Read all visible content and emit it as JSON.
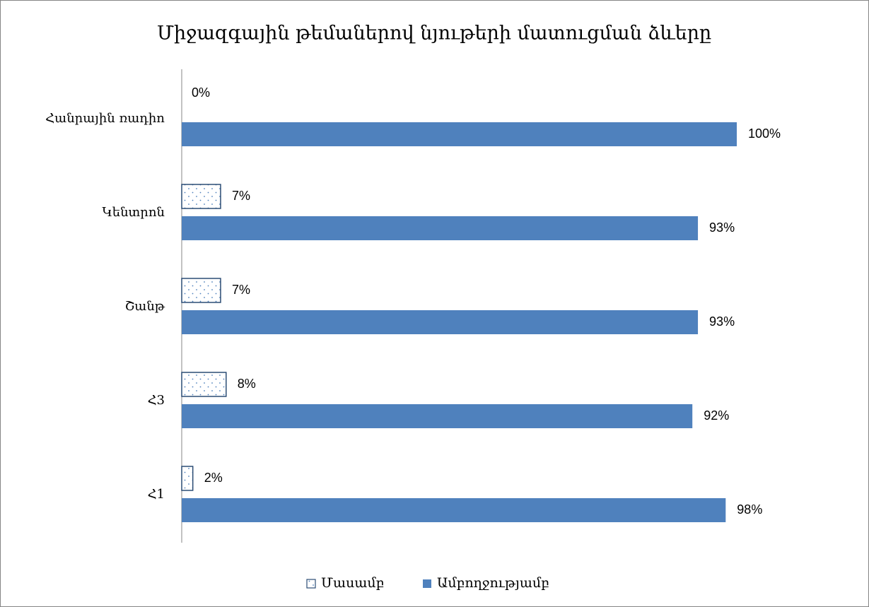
{
  "chart_data": {
    "type": "hbar",
    "title": "Միջազգային թեմաներով նյութերի մատուցման ձևերը",
    "categories": [
      "Հանրային ռադիո",
      "Կենտրոն",
      "Շանթ",
      "Հ3",
      "Հ1"
    ],
    "series": [
      {
        "name": "Մասամբ",
        "color": "#2c4d75",
        "pattern": "dotted",
        "values": [
          0,
          7,
          7,
          8,
          2
        ],
        "value_labels": [
          "0%",
          "7%",
          "7%",
          "8%",
          "2%"
        ]
      },
      {
        "name": "Ամբողջությամբ",
        "color": "#4f81bd",
        "values": [
          100,
          93,
          93,
          92,
          98
        ],
        "value_labels": [
          "100%",
          "93%",
          "93%",
          "92%",
          "98%"
        ]
      }
    ],
    "xlim": [
      0,
      100
    ],
    "legend": "bottom"
  }
}
